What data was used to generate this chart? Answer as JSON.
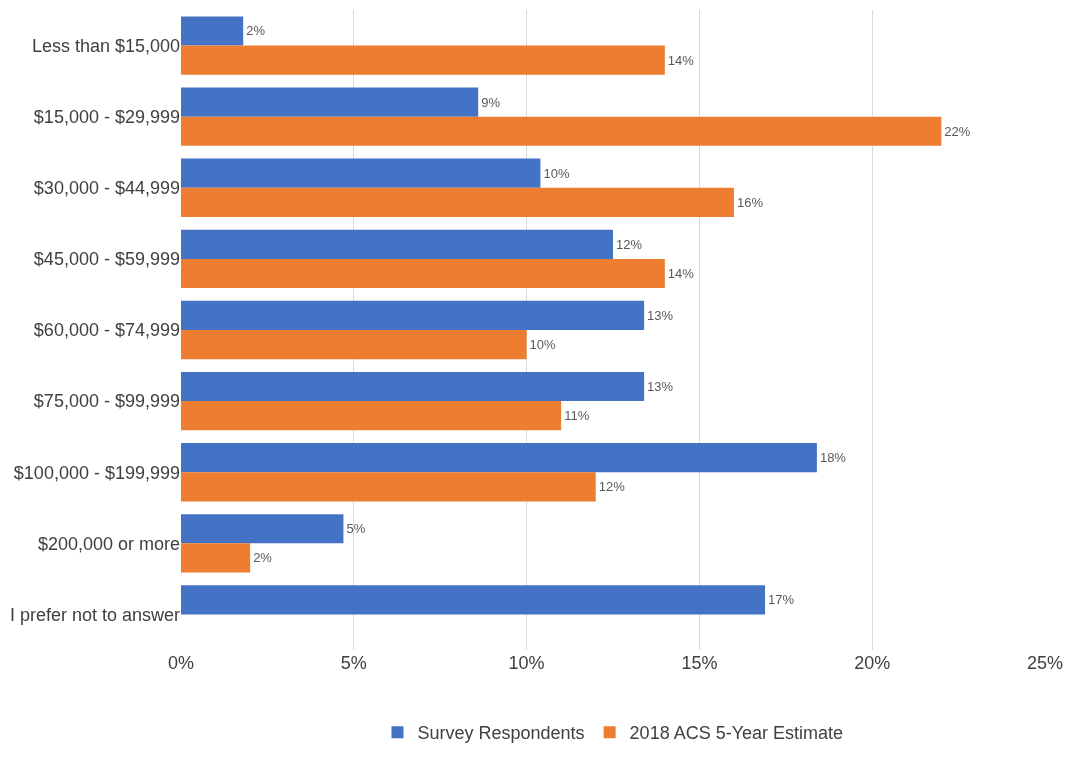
{
  "chart_data": {
    "type": "bar",
    "orientation": "horizontal",
    "categories": [
      "Less than $15,000",
      "$15,000 - $29,999",
      "$30,000 - $44,999",
      "$45,000 - $59,999",
      "$60,000 - $74,999",
      "$75,000 - $99,999",
      "$100,000 - $199,999",
      "$200,000 or more",
      "I prefer not to answer"
    ],
    "series": [
      {
        "name": "Survey Respondents",
        "color": "#4472c4",
        "values": [
          1.8,
          8.6,
          10.4,
          12.5,
          13.4,
          13.4,
          18.4,
          4.7,
          16.9
        ],
        "value_labels": [
          "2%",
          "9%",
          "10%",
          "12%",
          "13%",
          "13%",
          "18%",
          "5%",
          "17%"
        ]
      },
      {
        "name": "2018 ACS 5-Year Estimate",
        "color": "#ed7d31",
        "values": [
          14,
          22,
          16,
          14,
          10,
          11,
          12,
          2,
          null
        ],
        "value_labels": [
          "14%",
          "22%",
          "16%",
          "14%",
          "10%",
          "11%",
          "12%",
          "2%",
          null
        ]
      }
    ],
    "xlim": [
      0,
      25
    ],
    "xticks": [
      {
        "value": 0,
        "label": "0%"
      },
      {
        "value": 5,
        "label": "5%"
      },
      {
        "value": 10,
        "label": "10%"
      },
      {
        "value": 15,
        "label": "15%"
      },
      {
        "value": 20,
        "label": "20%"
      },
      {
        "value": 25,
        "label": "25%"
      }
    ],
    "grid": "x",
    "legend": "bottom"
  }
}
